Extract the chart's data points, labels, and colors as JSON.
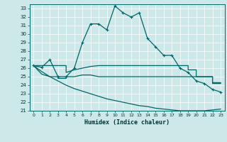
{
  "title": "",
  "xlabel": "Humidex (Indice chaleur)",
  "ylabel": "",
  "background_color": "#cce8e8",
  "grid_color": "#b0d0d0",
  "line_color": "#006666",
  "xlim": [
    -0.5,
    23.5
  ],
  "ylim": [
    21,
    33.5
  ],
  "yticks": [
    21,
    22,
    23,
    24,
    25,
    26,
    27,
    28,
    29,
    30,
    31,
    32,
    33
  ],
  "xticks": [
    0,
    1,
    2,
    3,
    4,
    5,
    6,
    7,
    8,
    9,
    10,
    11,
    12,
    13,
    14,
    15,
    16,
    17,
    18,
    19,
    20,
    21,
    22,
    23
  ],
  "series": [
    {
      "x": [
        0,
        1,
        2,
        3,
        4,
        5,
        6,
        7,
        8,
        9,
        10,
        11,
        12,
        13,
        14,
        15,
        16,
        17,
        18,
        19,
        20,
        21,
        22,
        23
      ],
      "y": [
        26.3,
        26.1,
        27.0,
        25.0,
        25.0,
        26.0,
        29.0,
        31.2,
        31.2,
        30.5,
        33.3,
        32.5,
        32.0,
        32.5,
        29.5,
        28.5,
        27.5,
        27.5,
        26.0,
        25.5,
        24.5,
        24.2,
        23.5,
        23.2
      ],
      "marker": true,
      "marker_size": 3.5,
      "linewidth": 0.9
    },
    {
      "x": [
        0,
        1,
        2,
        3,
        4,
        4,
        5,
        6,
        7,
        8,
        9,
        10,
        11,
        12,
        13,
        14,
        15,
        16,
        17,
        18,
        19,
        19,
        20,
        20,
        21,
        22,
        22,
        23
      ],
      "y": [
        26.3,
        26.3,
        26.3,
        26.3,
        26.3,
        25.5,
        25.8,
        26.0,
        26.2,
        26.3,
        26.3,
        26.3,
        26.3,
        26.3,
        26.3,
        26.3,
        26.3,
        26.3,
        26.3,
        26.3,
        26.3,
        25.8,
        25.8,
        25.0,
        25.0,
        25.0,
        24.3,
        24.3
      ],
      "marker": false,
      "linewidth": 0.9
    },
    {
      "x": [
        0,
        1,
        2,
        3,
        3,
        4,
        4,
        5,
        6,
        7,
        8,
        9,
        10,
        11,
        12,
        13,
        14,
        15,
        16,
        17,
        18,
        19,
        20,
        21,
        22,
        22,
        23
      ],
      "y": [
        26.3,
        25.3,
        25.0,
        25.0,
        24.8,
        24.8,
        25.0,
        25.0,
        25.2,
        25.2,
        25.0,
        25.0,
        25.0,
        25.0,
        25.0,
        25.0,
        25.0,
        25.0,
        25.0,
        25.0,
        25.0,
        25.0,
        25.0,
        25.0,
        25.0,
        24.2,
        24.2
      ],
      "marker": false,
      "linewidth": 0.9
    },
    {
      "x": [
        0,
        1,
        2,
        3,
        4,
        5,
        6,
        7,
        8,
        9,
        10,
        11,
        12,
        13,
        14,
        15,
        16,
        17,
        18,
        19,
        20,
        21,
        22,
        23
      ],
      "y": [
        26.3,
        25.6,
        25.0,
        24.5,
        24.0,
        23.6,
        23.3,
        23.0,
        22.7,
        22.4,
        22.2,
        22.0,
        21.8,
        21.6,
        21.5,
        21.3,
        21.2,
        21.1,
        21.0,
        21.0,
        21.0,
        21.0,
        21.1,
        21.2
      ],
      "marker": false,
      "linewidth": 0.9
    }
  ]
}
